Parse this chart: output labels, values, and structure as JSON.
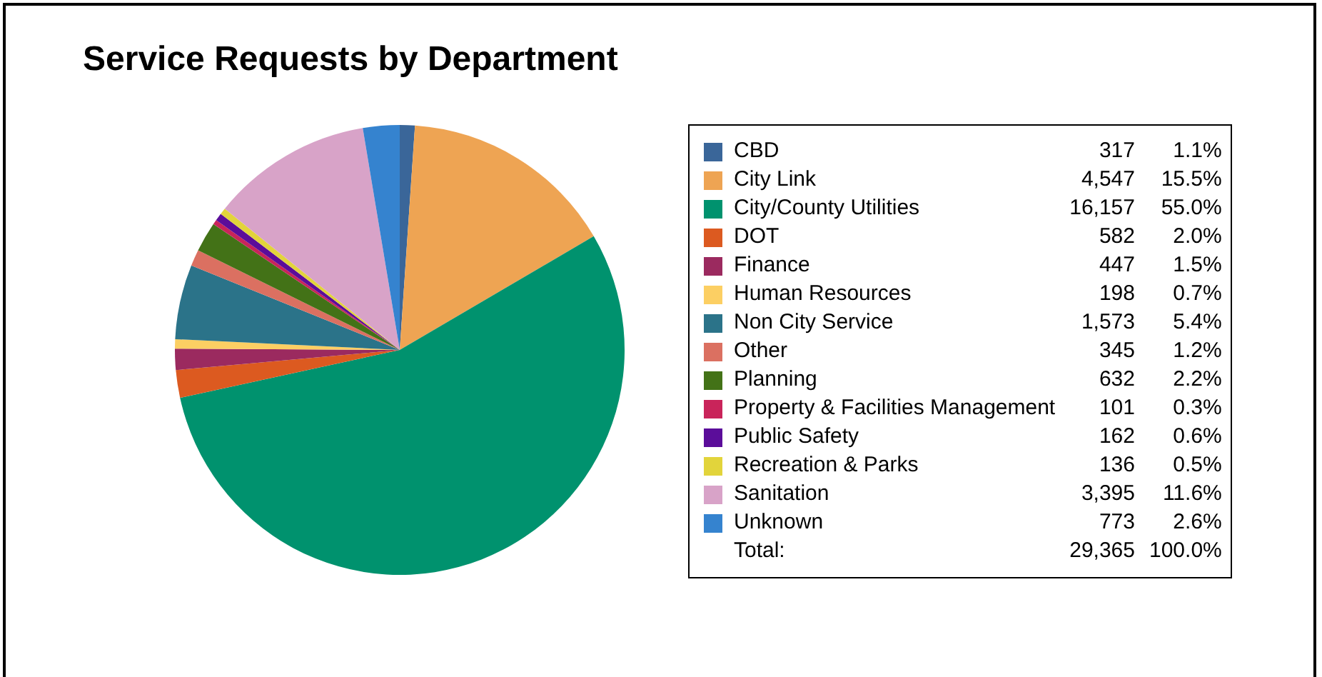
{
  "chart_data": {
    "type": "pie",
    "title": "Service Requests by Department",
    "categories": [
      "CBD",
      "City Link",
      "City/County Utilities",
      "DOT",
      "Finance",
      "Human Resources",
      "Non City Service",
      "Other",
      "Planning",
      "Property & Facilities Management",
      "Public Safety",
      "Recreation & Parks",
      "Sanitation",
      "Unknown"
    ],
    "values": [
      317,
      4547,
      16157,
      582,
      447,
      198,
      1573,
      345,
      632,
      101,
      162,
      136,
      3395,
      773
    ],
    "colors": [
      "#3a6699",
      "#eea453",
      "#00926e",
      "#dc5a20",
      "#9b2a5f",
      "#fccf63",
      "#2b7389",
      "#db7061",
      "#437217",
      "#c9245a",
      "#5b0d9a",
      "#e2d43b",
      "#d8a3c8",
      "#3583cf"
    ],
    "value_labels": [
      "317",
      "4,547",
      "16,157",
      "582",
      "447",
      "198",
      "1,573",
      "345",
      "632",
      "101",
      "162",
      "136",
      "3,395",
      "773"
    ],
    "totals": [
      "29,365",
      "100.0%"
    ],
    "annotations": [
      {
        "text": "1.1%",
        "x": "CBD"
      },
      {
        "text": "15.5%",
        "x": "City Link"
      },
      {
        "text": "55.0%",
        "x": "City/County Utilities"
      },
      {
        "text": "2.0%",
        "x": "DOT"
      },
      {
        "text": "1.5%",
        "x": "Finance"
      },
      {
        "text": "0.7%",
        "x": "Human Resources"
      },
      {
        "text": "5.4%",
        "x": "Non City Service"
      },
      {
        "text": "1.2%",
        "x": "Other"
      },
      {
        "text": "2.2%",
        "x": "Planning"
      },
      {
        "text": "0.3%",
        "x": "Property & Facilities Management"
      },
      {
        "text": "0.6%",
        "x": "Public Safety"
      },
      {
        "text": "0.5%",
        "x": "Recreation & Parks"
      },
      {
        "text": "11.6%",
        "x": "Sanitation"
      },
      {
        "text": "2.6%",
        "x": "Unknown"
      },
      "Total:"
    ],
    "legend": "right"
  }
}
